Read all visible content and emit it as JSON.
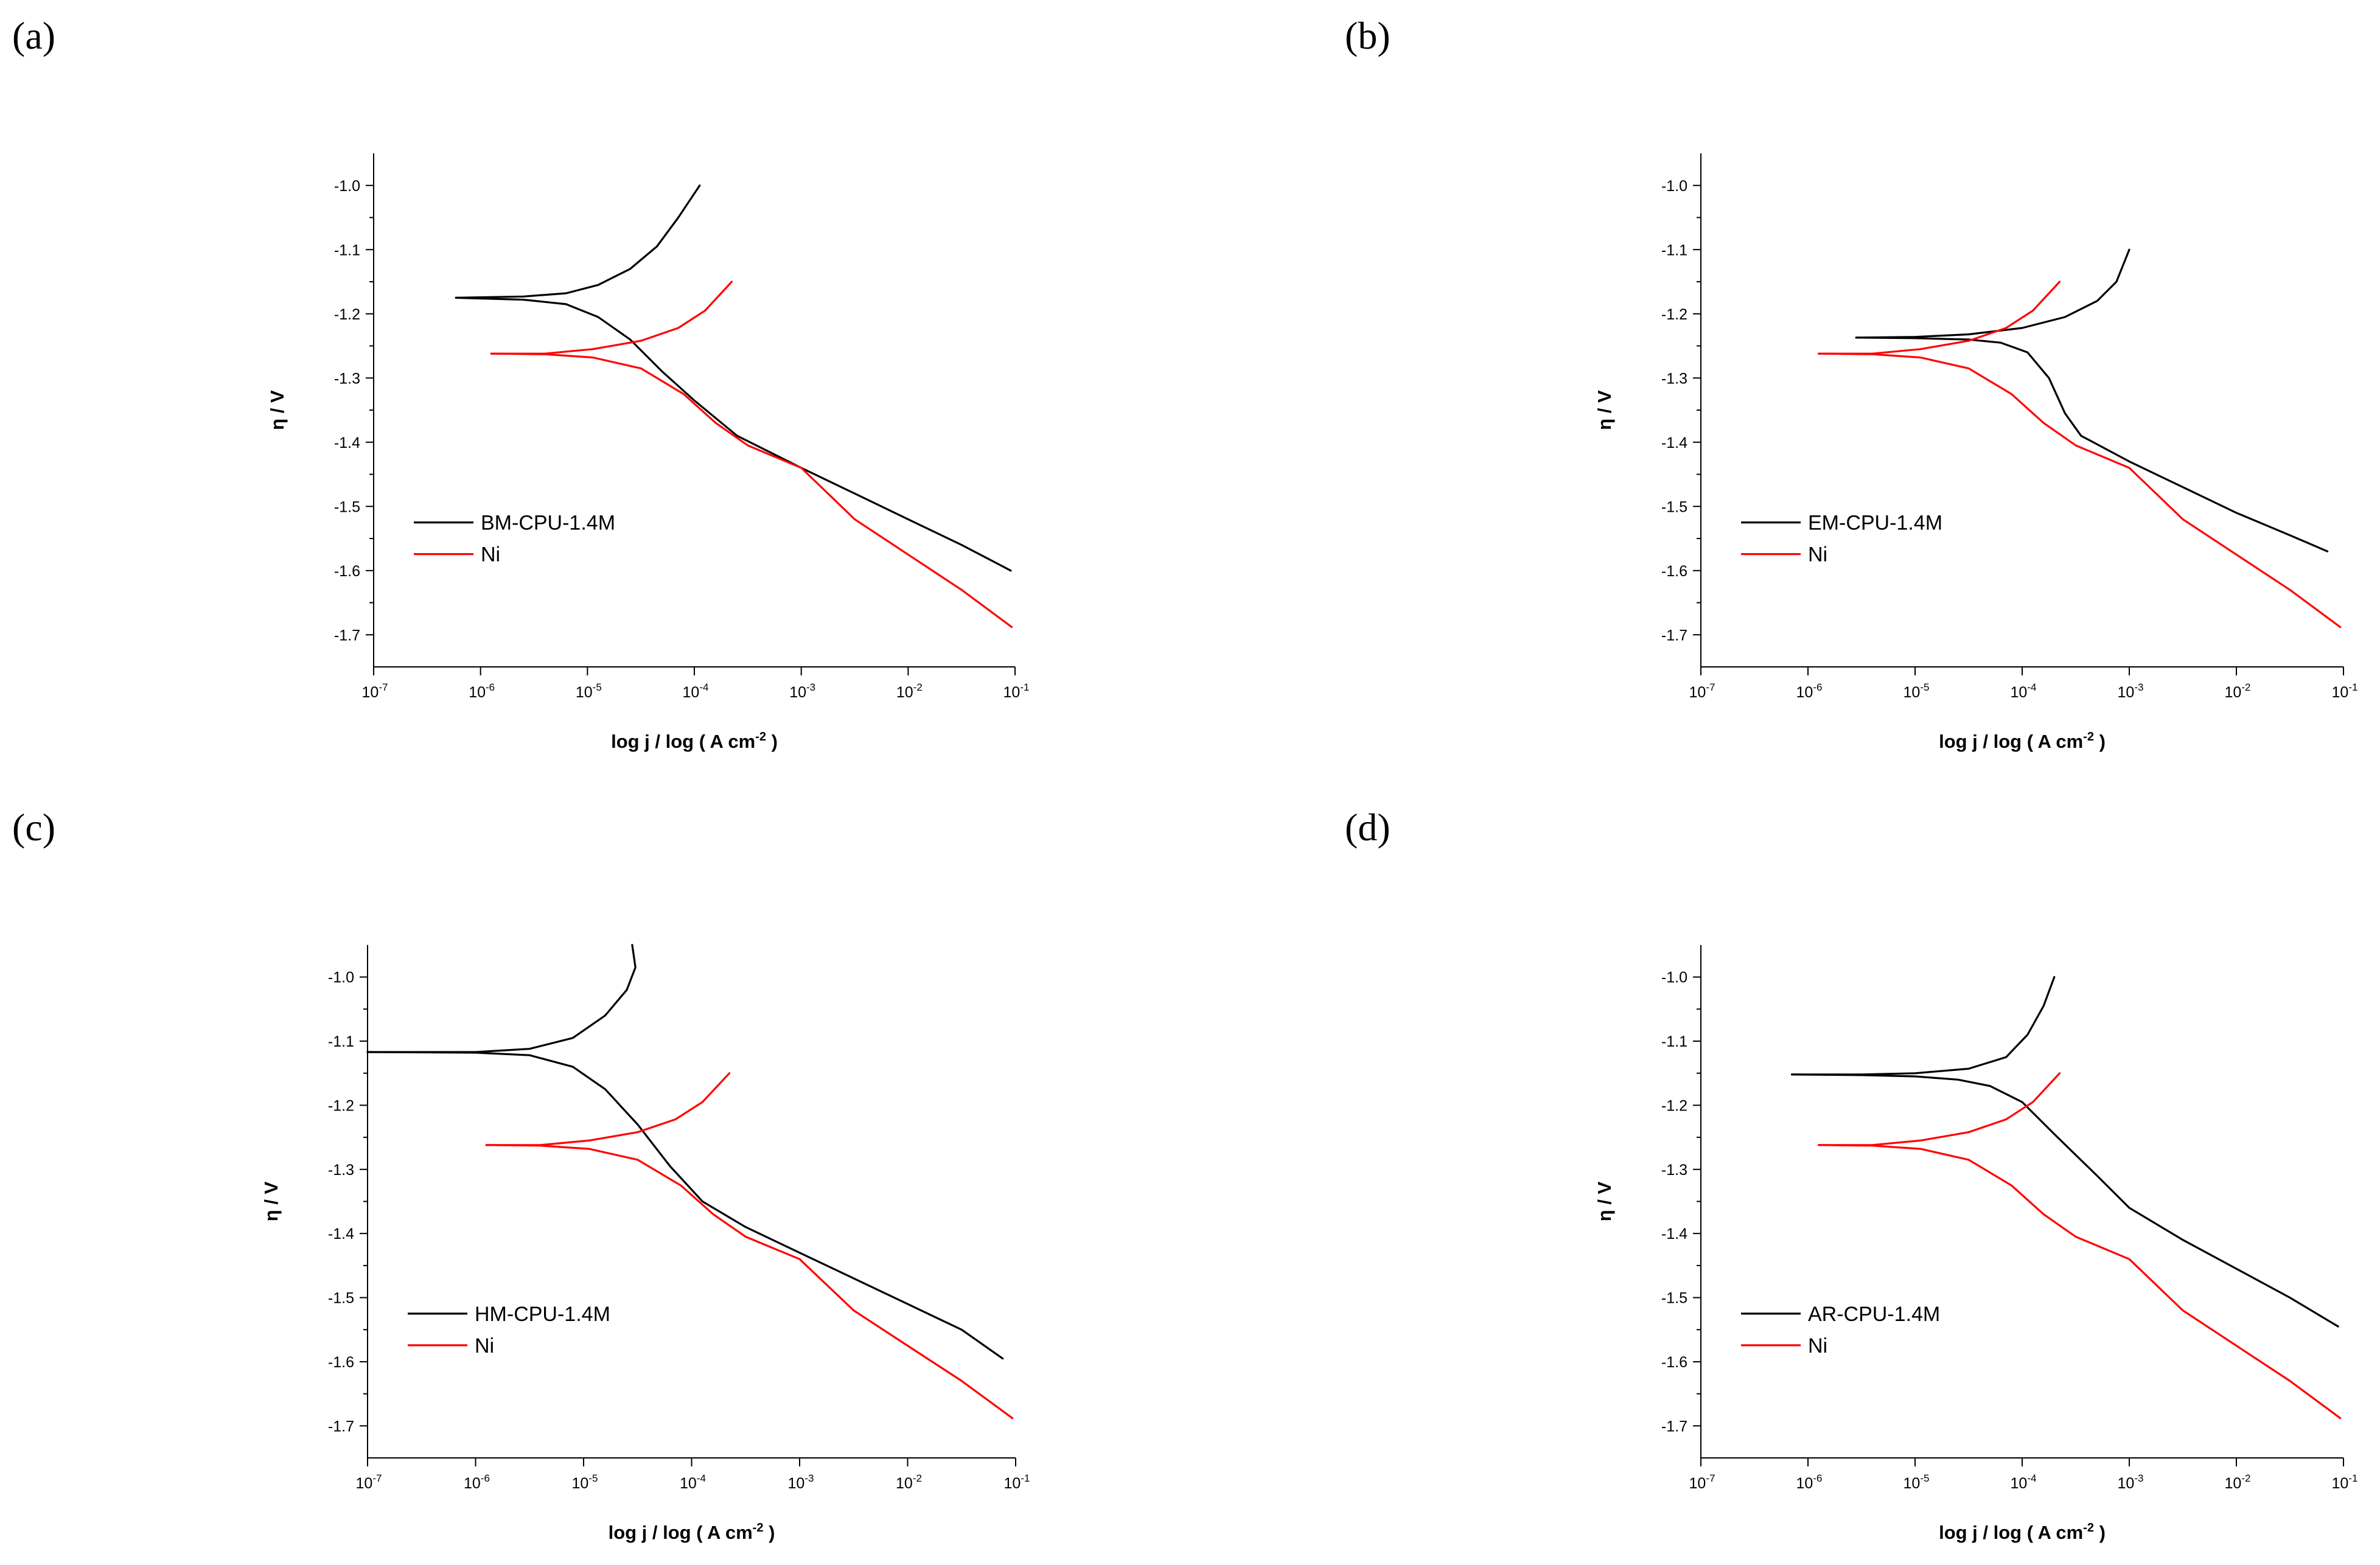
{
  "figure": {
    "panel_labels": [
      "(a)",
      "(b)",
      "(c)",
      "(d)"
    ]
  },
  "chart_data": [
    {
      "type": "line",
      "panel": "(a)",
      "xlabel": "log j  /  log ( A cm",
      "xlabel_exp": "-2",
      "xlabel_close": " )",
      "ylabel": "η / V",
      "xscale": "log",
      "xlim_exp": [
        -7,
        -1
      ],
      "ylim": [
        -1.75,
        -0.95
      ],
      "yticks": [
        -1.0,
        -1.1,
        -1.2,
        -1.3,
        -1.4,
        -1.5,
        -1.6,
        -1.7
      ],
      "ytick_labels": [
        "-1.0",
        "-1.1",
        "-1.2",
        "-1.3",
        "-1.4",
        "-1.5",
        "-1.6",
        "-1.7"
      ],
      "xtick_exps": [
        -7,
        -6,
        -5,
        -4,
        -3,
        -2,
        -1
      ],
      "xtick_base": "10",
      "xtick_exp_labels": [
        "-7",
        "-6",
        "-5",
        "-4",
        "-3",
        "-2",
        "-1"
      ],
      "legend_position": "lower-left",
      "series": [
        {
          "name": "BM-CPU-1.4M",
          "color": "#000000",
          "anodic": [
            [
              -6.23,
              -1.175
            ],
            [
              -5.6,
              -1.173
            ],
            [
              -5.2,
              -1.168
            ],
            [
              -4.9,
              -1.155
            ],
            [
              -4.6,
              -1.13
            ],
            [
              -4.35,
              -1.095
            ],
            [
              -4.15,
              -1.05
            ],
            [
              -3.95,
              -1.0
            ]
          ],
          "cathodic": [
            [
              -6.23,
              -1.175
            ],
            [
              -5.6,
              -1.178
            ],
            [
              -5.2,
              -1.185
            ],
            [
              -4.9,
              -1.205
            ],
            [
              -4.6,
              -1.24
            ],
            [
              -4.3,
              -1.29
            ],
            [
              -4.0,
              -1.335
            ],
            [
              -3.6,
              -1.39
            ],
            [
              -3.0,
              -1.44
            ],
            [
              -2.5,
              -1.48
            ],
            [
              -2.0,
              -1.52
            ],
            [
              -1.5,
              -1.56
            ],
            [
              -1.04,
              -1.6
            ]
          ]
        },
        {
          "name": "Ni",
          "color": "#ff0000",
          "anodic": [
            [
              -5.9,
              -1.262
            ],
            [
              -5.4,
              -1.262
            ],
            [
              -4.95,
              -1.255
            ],
            [
              -4.5,
              -1.242
            ],
            [
              -4.15,
              -1.222
            ],
            [
              -3.9,
              -1.195
            ],
            [
              -3.65,
              -1.15
            ]
          ],
          "cathodic": [
            [
              -5.9,
              -1.262
            ],
            [
              -5.4,
              -1.263
            ],
            [
              -4.95,
              -1.268
            ],
            [
              -4.5,
              -1.285
            ],
            [
              -4.1,
              -1.325
            ],
            [
              -3.8,
              -1.37
            ],
            [
              -3.5,
              -1.405
            ],
            [
              -3.0,
              -1.44
            ],
            [
              -2.5,
              -1.52
            ],
            [
              -2.0,
              -1.575
            ],
            [
              -1.5,
              -1.63
            ],
            [
              -1.03,
              -1.688
            ]
          ]
        }
      ]
    },
    {
      "type": "line",
      "panel": "(b)",
      "xlabel": "log j  /  log ( A cm",
      "xlabel_exp": "-2",
      "xlabel_close": " )",
      "ylabel": "η / V",
      "xscale": "log",
      "xlim_exp": [
        -7,
        -1
      ],
      "ylim": [
        -1.75,
        -0.95
      ],
      "yticks": [
        -1.0,
        -1.1,
        -1.2,
        -1.3,
        -1.4,
        -1.5,
        -1.6,
        -1.7
      ],
      "ytick_labels": [
        "-1.0",
        "-1.1",
        "-1.2",
        "-1.3",
        "-1.4",
        "-1.5",
        "-1.6",
        "-1.7"
      ],
      "xtick_exps": [
        -7,
        -6,
        -5,
        -4,
        -3,
        -2,
        -1
      ],
      "xtick_base": "10",
      "xtick_exp_labels": [
        "-7",
        "-6",
        "-5",
        "-4",
        "-3",
        "-2",
        "-1"
      ],
      "legend_position": "lower-left",
      "series": [
        {
          "name": "EM-CPU-1.4M",
          "color": "#000000",
          "anodic": [
            [
              -5.55,
              -1.237
            ],
            [
              -5.0,
              -1.236
            ],
            [
              -4.5,
              -1.232
            ],
            [
              -4.0,
              -1.222
            ],
            [
              -3.6,
              -1.205
            ],
            [
              -3.3,
              -1.18
            ],
            [
              -3.12,
              -1.15
            ],
            [
              -3.0,
              -1.1
            ]
          ],
          "cathodic": [
            [
              -5.55,
              -1.237
            ],
            [
              -5.0,
              -1.238
            ],
            [
              -4.5,
              -1.24
            ],
            [
              -4.2,
              -1.245
            ],
            [
              -3.95,
              -1.26
            ],
            [
              -3.75,
              -1.3
            ],
            [
              -3.6,
              -1.355
            ],
            [
              -3.45,
              -1.39
            ],
            [
              -3.0,
              -1.43
            ],
            [
              -2.5,
              -1.47
            ],
            [
              -2.0,
              -1.51
            ],
            [
              -1.5,
              -1.545
            ],
            [
              -1.15,
              -1.57
            ]
          ]
        },
        {
          "name": "Ni",
          "color": "#ff0000",
          "anodic": [
            [
              -5.9,
              -1.262
            ],
            [
              -5.4,
              -1.262
            ],
            [
              -4.95,
              -1.255
            ],
            [
              -4.5,
              -1.242
            ],
            [
              -4.15,
              -1.222
            ],
            [
              -3.9,
              -1.195
            ],
            [
              -3.65,
              -1.15
            ]
          ],
          "cathodic": [
            [
              -5.9,
              -1.262
            ],
            [
              -5.4,
              -1.263
            ],
            [
              -4.95,
              -1.268
            ],
            [
              -4.5,
              -1.285
            ],
            [
              -4.1,
              -1.325
            ],
            [
              -3.8,
              -1.37
            ],
            [
              -3.5,
              -1.405
            ],
            [
              -3.0,
              -1.44
            ],
            [
              -2.5,
              -1.52
            ],
            [
              -2.0,
              -1.575
            ],
            [
              -1.5,
              -1.63
            ],
            [
              -1.03,
              -1.688
            ]
          ]
        }
      ]
    },
    {
      "type": "line",
      "panel": "(c)",
      "xlabel": "log j  /  log ( A cm",
      "xlabel_exp": "-2",
      "xlabel_close": " )",
      "ylabel": "η / V",
      "xscale": "log",
      "xlim_exp": [
        -7,
        -1
      ],
      "ylim": [
        -1.75,
        -0.95
      ],
      "yticks": [
        -1.0,
        -1.1,
        -1.2,
        -1.3,
        -1.4,
        -1.5,
        -1.6,
        -1.7
      ],
      "ytick_labels": [
        "-1.0",
        "-1.1",
        "-1.2",
        "-1.3",
        "-1.4",
        "-1.5",
        "-1.6",
        "-1.7"
      ],
      "xtick_exps": [
        -7,
        -6,
        -5,
        -4,
        -3,
        -2,
        -1
      ],
      "xtick_base": "10",
      "xtick_exp_labels": [
        "-7",
        "-6",
        "-5",
        "-4",
        "-3",
        "-2",
        "-1"
      ],
      "legend_position": "lower-left",
      "series": [
        {
          "name": "HM-CPU-1.4M",
          "color": "#000000",
          "anodic": [
            [
              -7.0,
              -1.117
            ],
            [
              -6.0,
              -1.117
            ],
            [
              -5.5,
              -1.112
            ],
            [
              -5.1,
              -1.095
            ],
            [
              -4.8,
              -1.06
            ],
            [
              -4.6,
              -1.02
            ],
            [
              -4.52,
              -0.985
            ],
            [
              -4.55,
              -0.95
            ]
          ],
          "cathodic": [
            [
              -7.0,
              -1.117
            ],
            [
              -6.0,
              -1.118
            ],
            [
              -5.5,
              -1.122
            ],
            [
              -5.1,
              -1.14
            ],
            [
              -4.8,
              -1.175
            ],
            [
              -4.5,
              -1.23
            ],
            [
              -4.2,
              -1.295
            ],
            [
              -3.9,
              -1.35
            ],
            [
              -3.5,
              -1.39
            ],
            [
              -3.0,
              -1.43
            ],
            [
              -2.5,
              -1.47
            ],
            [
              -2.0,
              -1.51
            ],
            [
              -1.5,
              -1.55
            ],
            [
              -1.12,
              -1.595
            ]
          ]
        },
        {
          "name": "Ni",
          "color": "#ff0000",
          "anodic": [
            [
              -5.9,
              -1.262
            ],
            [
              -5.4,
              -1.262
            ],
            [
              -4.95,
              -1.255
            ],
            [
              -4.5,
              -1.242
            ],
            [
              -4.15,
              -1.222
            ],
            [
              -3.9,
              -1.195
            ],
            [
              -3.65,
              -1.15
            ]
          ],
          "cathodic": [
            [
              -5.9,
              -1.262
            ],
            [
              -5.4,
              -1.263
            ],
            [
              -4.95,
              -1.268
            ],
            [
              -4.5,
              -1.285
            ],
            [
              -4.1,
              -1.325
            ],
            [
              -3.8,
              -1.37
            ],
            [
              -3.5,
              -1.405
            ],
            [
              -3.0,
              -1.44
            ],
            [
              -2.5,
              -1.52
            ],
            [
              -2.0,
              -1.575
            ],
            [
              -1.5,
              -1.63
            ],
            [
              -1.03,
              -1.688
            ]
          ]
        }
      ]
    },
    {
      "type": "line",
      "panel": "(d)",
      "xlabel": "log j  /  log ( A cm",
      "xlabel_exp": "-2",
      "xlabel_close": " )",
      "ylabel": "η / V",
      "xscale": "log",
      "xlim_exp": [
        -7,
        -1
      ],
      "ylim": [
        -1.75,
        -0.95
      ],
      "yticks": [
        -1.0,
        -1.1,
        -1.2,
        -1.3,
        -1.4,
        -1.5,
        -1.6,
        -1.7
      ],
      "ytick_labels": [
        "-1.0",
        "-1.1",
        "-1.2",
        "-1.3",
        "-1.4",
        "-1.5",
        "-1.6",
        "-1.7"
      ],
      "xtick_exps": [
        -7,
        -6,
        -5,
        -4,
        -3,
        -2,
        -1
      ],
      "xtick_base": "10",
      "xtick_exp_labels": [
        "-7",
        "-6",
        "-5",
        "-4",
        "-3",
        "-2",
        "-1"
      ],
      "legend_position": "lower-left",
      "series": [
        {
          "name": "AR-CPU-1.4M",
          "color": "#000000",
          "anodic": [
            [
              -6.15,
              -1.152
            ],
            [
              -5.5,
              -1.152
            ],
            [
              -5.0,
              -1.15
            ],
            [
              -4.5,
              -1.143
            ],
            [
              -4.15,
              -1.125
            ],
            [
              -3.95,
              -1.09
            ],
            [
              -3.8,
              -1.045
            ],
            [
              -3.7,
              -1.0
            ]
          ],
          "cathodic": [
            [
              -6.15,
              -1.152
            ],
            [
              -5.5,
              -1.153
            ],
            [
              -5.0,
              -1.155
            ],
            [
              -4.6,
              -1.16
            ],
            [
              -4.3,
              -1.17
            ],
            [
              -4.0,
              -1.195
            ],
            [
              -3.7,
              -1.245
            ],
            [
              -3.3,
              -1.31
            ],
            [
              -3.0,
              -1.36
            ],
            [
              -2.5,
              -1.41
            ],
            [
              -2.0,
              -1.455
            ],
            [
              -1.5,
              -1.5
            ],
            [
              -1.05,
              -1.545
            ]
          ]
        },
        {
          "name": "Ni",
          "color": "#ff0000",
          "anodic": [
            [
              -5.9,
              -1.262
            ],
            [
              -5.4,
              -1.262
            ],
            [
              -4.95,
              -1.255
            ],
            [
              -4.5,
              -1.242
            ],
            [
              -4.15,
              -1.222
            ],
            [
              -3.9,
              -1.195
            ],
            [
              -3.65,
              -1.15
            ]
          ],
          "cathodic": [
            [
              -5.9,
              -1.262
            ],
            [
              -5.4,
              -1.263
            ],
            [
              -4.95,
              -1.268
            ],
            [
              -4.5,
              -1.285
            ],
            [
              -4.1,
              -1.325
            ],
            [
              -3.8,
              -1.37
            ],
            [
              -3.5,
              -1.405
            ],
            [
              -3.0,
              -1.44
            ],
            [
              -2.5,
              -1.52
            ],
            [
              -2.0,
              -1.575
            ],
            [
              -1.5,
              -1.63
            ],
            [
              -1.03,
              -1.688
            ]
          ]
        }
      ]
    }
  ]
}
